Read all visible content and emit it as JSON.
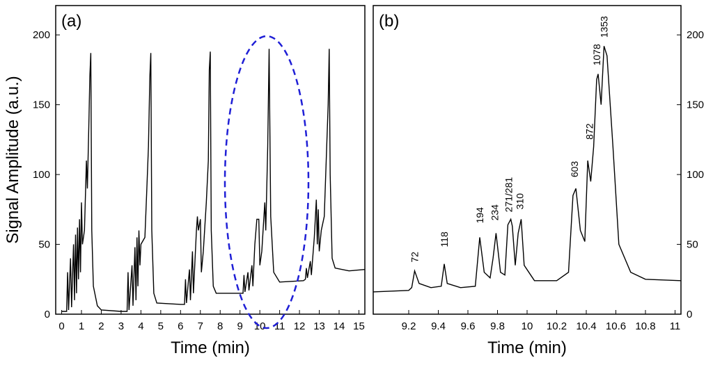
{
  "chart_data": [
    {
      "type": "line",
      "panel_label": "(a)",
      "xlabel": "Time (min)",
      "ylabel": "Signal  Amplitude (a.u.)",
      "xlim": [
        -0.3,
        15.3
      ],
      "ylim": [
        0,
        221
      ],
      "yaxis_side": "left",
      "xticks": [
        0,
        1,
        2,
        3,
        4,
        5,
        6,
        7,
        8,
        9,
        10,
        11,
        12,
        13,
        14,
        15
      ],
      "yticks": [
        0,
        50,
        100,
        150,
        200
      ],
      "series": [
        {
          "name": "signal",
          "color": "#000000",
          "x": [
            0.0,
            0.25,
            0.3,
            0.35,
            0.45,
            0.5,
            0.6,
            0.65,
            0.7,
            0.75,
            0.8,
            0.85,
            0.9,
            0.95,
            1.0,
            1.05,
            1.15,
            1.25,
            1.3,
            1.38,
            1.42,
            1.47,
            1.52,
            1.6,
            1.8,
            2.0,
            3.0,
            3.3,
            3.35,
            3.4,
            3.55,
            3.6,
            3.7,
            3.75,
            3.8,
            3.85,
            3.9,
            3.95,
            4.0,
            4.2,
            4.3,
            4.38,
            4.45,
            4.5,
            4.55,
            4.65,
            4.8,
            6.0,
            6.2,
            6.25,
            6.3,
            6.45,
            6.5,
            6.6,
            6.65,
            6.8,
            6.85,
            6.9,
            7.0,
            7.05,
            7.15,
            7.3,
            7.4,
            7.45,
            7.5,
            7.55,
            7.65,
            7.8,
            9.0,
            9.15,
            9.2,
            9.25,
            9.4,
            9.45,
            9.6,
            9.65,
            9.75,
            9.85,
            9.95,
            10.0,
            10.1,
            10.25,
            10.3,
            10.4,
            10.47,
            10.55,
            10.7,
            11.0,
            12.2,
            12.3,
            12.35,
            12.4,
            12.55,
            12.6,
            12.75,
            12.85,
            12.9,
            12.95,
            13.0,
            13.1,
            13.25,
            13.35,
            13.45,
            13.5,
            13.55,
            13.65,
            13.8,
            14.5,
            15.3
          ],
          "values": [
            2,
            2,
            30,
            3,
            40,
            5,
            50,
            10,
            57,
            15,
            62,
            25,
            68,
            30,
            80,
            50,
            60,
            110,
            90,
            140,
            170,
            187,
            60,
            20,
            6,
            3,
            2,
            2,
            30,
            3,
            35,
            6,
            48,
            10,
            55,
            20,
            60,
            35,
            50,
            55,
            90,
            120,
            170,
            187,
            60,
            15,
            8,
            7,
            7,
            25,
            8,
            32,
            10,
            45,
            15,
            60,
            70,
            60,
            68,
            30,
            45,
            80,
            110,
            175,
            188,
            60,
            20,
            15,
            15,
            15,
            28,
            16,
            30,
            17,
            35,
            20,
            50,
            68,
            68,
            35,
            45,
            80,
            60,
            120,
            190,
            70,
            30,
            23,
            24,
            25,
            33,
            26,
            38,
            28,
            55,
            82,
            50,
            75,
            45,
            60,
            70,
            110,
            150,
            190,
            100,
            40,
            33,
            31,
            32
          ]
        }
      ]
    },
    {
      "type": "line",
      "panel_label": "(b)",
      "xlabel": "Time (min)",
      "xlim": [
        8.96,
        11.04
      ],
      "ylim": [
        0,
        221
      ],
      "yaxis_side": "right",
      "xticks": [
        9.2,
        9.4,
        9.6,
        9.8,
        10,
        10.2,
        10.4,
        10.6,
        10.8,
        11
      ],
      "yticks": [
        0,
        50,
        100,
        150,
        200
      ],
      "series": [
        {
          "name": "signal",
          "color": "#000000",
          "x": [
            8.96,
            9.2,
            9.22,
            9.24,
            9.27,
            9.35,
            9.42,
            9.44,
            9.46,
            9.55,
            9.65,
            9.68,
            9.71,
            9.75,
            9.77,
            9.79,
            9.82,
            9.85,
            9.87,
            9.89,
            9.9,
            9.92,
            9.94,
            9.96,
            9.98,
            10.05,
            10.2,
            10.28,
            10.31,
            10.33,
            10.36,
            10.39,
            10.41,
            10.43,
            10.45,
            10.47,
            10.48,
            10.5,
            10.52,
            10.54,
            10.58,
            10.62,
            10.7,
            10.8,
            11.04
          ],
          "values": [
            16,
            17,
            19,
            31,
            22,
            19,
            20,
            36,
            22,
            19,
            20,
            55,
            30,
            26,
            40,
            58,
            30,
            28,
            64,
            68,
            63,
            35,
            58,
            68,
            35,
            24,
            24,
            30,
            85,
            90,
            60,
            52,
            110,
            95,
            120,
            168,
            172,
            150,
            192,
            185,
            120,
            50,
            30,
            25,
            24
          ]
        }
      ],
      "annotations": [
        {
          "text": "72",
          "x": 9.24,
          "y": 37
        },
        {
          "text": "118",
          "x": 9.44,
          "y": 48
        },
        {
          "text": "194",
          "x": 9.68,
          "y": 65
        },
        {
          "text": "234",
          "x": 9.78,
          "y": 67
        },
        {
          "text": "271/281",
          "x": 9.875,
          "y": 73
        },
        {
          "text": "310",
          "x": 9.95,
          "y": 75
        },
        {
          "text": "603",
          "x": 10.32,
          "y": 98
        },
        {
          "text": "872",
          "x": 10.42,
          "y": 125
        },
        {
          "text": "1078",
          "x": 10.47,
          "y": 178
        },
        {
          "text": "1353",
          "x": 10.52,
          "y": 198
        }
      ]
    }
  ]
}
